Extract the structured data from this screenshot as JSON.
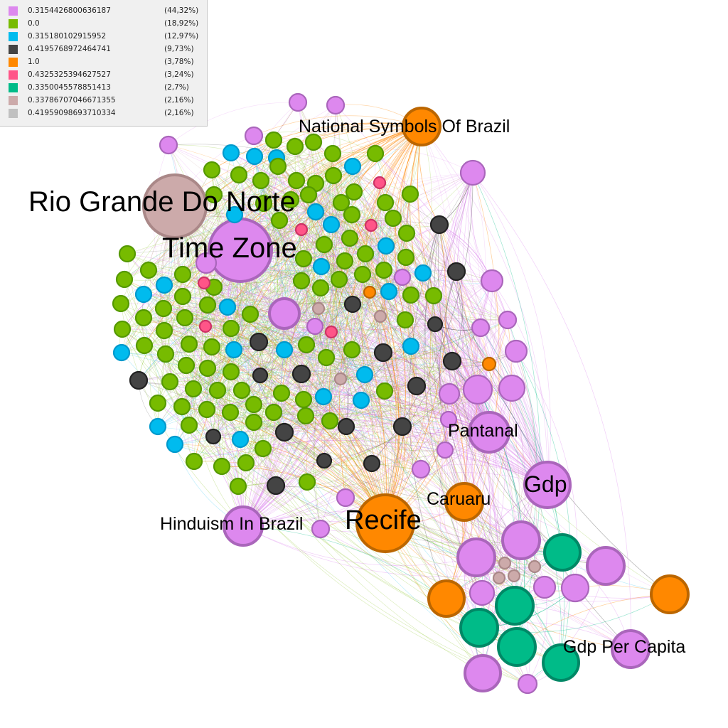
{
  "legend": [
    {
      "value": "0.3154426800636187",
      "pct": "(44,32%)",
      "color": "#dd88ee"
    },
    {
      "value": "0.0",
      "pct": "(18,92%)",
      "color": "#77bb00"
    },
    {
      "value": "0.315180102915952",
      "pct": "(12,97%)",
      "color": "#00bbee"
    },
    {
      "value": "0.4195768972464741",
      "pct": "(9,73%)",
      "color": "#444444"
    },
    {
      "value": "1.0",
      "pct": "(3,78%)",
      "color": "#ff8800"
    },
    {
      "value": "0.4325325394627527",
      "pct": "(3,24%)",
      "color": "#ff5588"
    },
    {
      "value": "0.3350045578851413",
      "pct": "(2,7%)",
      "color": "#00bb88"
    },
    {
      "value": "0.33786707046671355",
      "pct": "(2,16%)",
      "color": "#ccaaaa"
    },
    {
      "value": "0.41959098693710334",
      "pct": "(2,16%)",
      "color": "#c0c0c0"
    }
  ],
  "labels": {
    "rio": "Rio Grande Do Norte",
    "timezone": "Time Zone",
    "national": "National Symbols Of Brazil",
    "pantanal": "Pantanal",
    "gdp": "Gdp",
    "caruaru": "Caruaru",
    "recife": "Recife",
    "hinduism": "Hinduism In Brazil",
    "gdppc": "Gdp Per Capita"
  }
}
